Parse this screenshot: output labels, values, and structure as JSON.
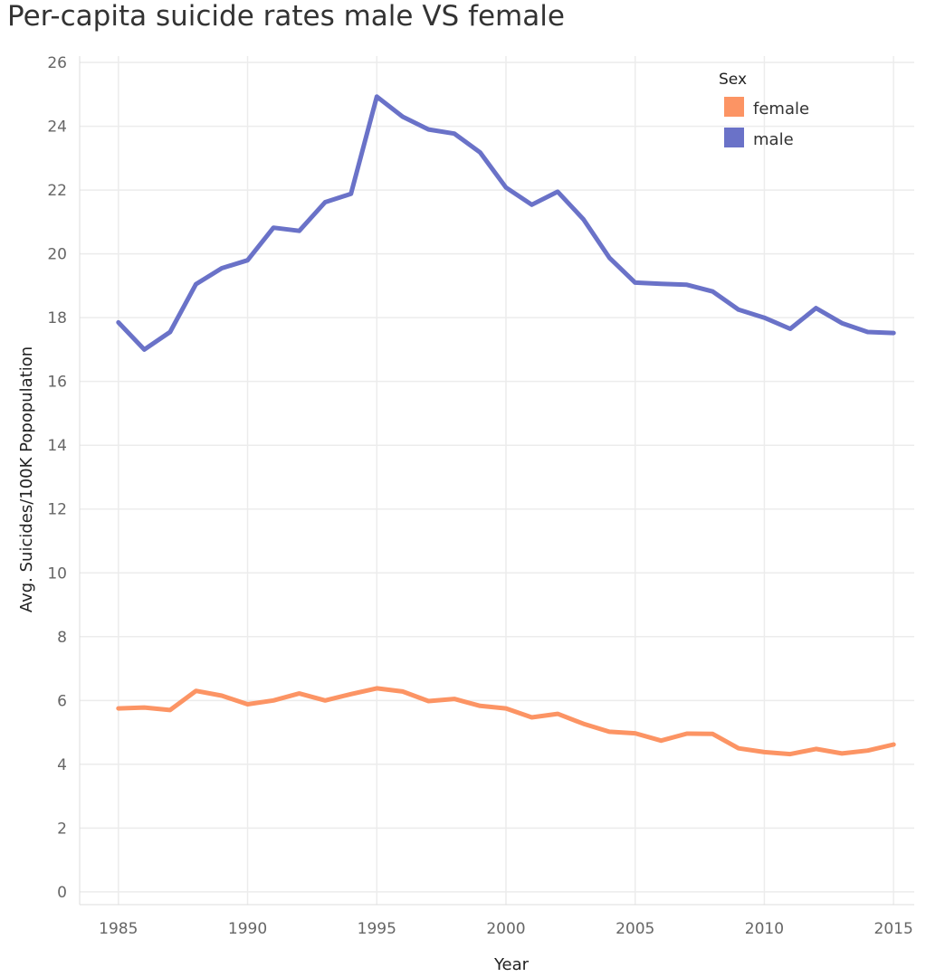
{
  "chart_data": {
    "type": "line",
    "title": "Per-capita suicide rates male VS female",
    "xlabel": "Year",
    "ylabel": "Avg. Suicides/100K Popopulation",
    "x": [
      1985,
      1986,
      1987,
      1988,
      1989,
      1990,
      1991,
      1992,
      1993,
      1994,
      1995,
      1996,
      1997,
      1998,
      1999,
      2000,
      2001,
      2002,
      2003,
      2004,
      2005,
      2006,
      2007,
      2008,
      2009,
      2010,
      2011,
      2012,
      2013,
      2014,
      2015
    ],
    "xlim": [
      1983.5,
      2015.8
    ],
    "ylim": [
      -0.4,
      26.2
    ],
    "x_ticks": [
      "1985",
      "1990",
      "1995",
      "2000",
      "2005",
      "2010",
      "2015"
    ],
    "y_ticks": [
      "0",
      "2",
      "4",
      "6",
      "8",
      "10",
      "12",
      "14",
      "16",
      "18",
      "20",
      "22",
      "24",
      "26"
    ],
    "grid": true,
    "legend": {
      "title": "Sex",
      "placement": "top-right"
    },
    "series": [
      {
        "name": "female",
        "color": "#fc9464",
        "values": [
          5.75,
          5.78,
          5.7,
          6.3,
          6.15,
          5.88,
          6.0,
          6.22,
          6.0,
          6.2,
          6.38,
          6.28,
          5.98,
          6.05,
          5.83,
          5.75,
          5.47,
          5.58,
          5.27,
          5.02,
          4.97,
          4.74,
          4.96,
          4.95,
          4.5,
          4.38,
          4.32,
          4.48,
          4.34,
          4.43,
          4.62
        ]
      },
      {
        "name": "male",
        "color": "#6a72c8",
        "values": [
          17.85,
          17.0,
          17.55,
          19.05,
          19.55,
          19.8,
          20.82,
          20.72,
          21.62,
          21.88,
          24.93,
          24.3,
          23.9,
          23.77,
          23.18,
          22.08,
          21.54,
          21.95,
          21.08,
          19.88,
          19.1,
          19.06,
          19.03,
          18.82,
          18.25,
          18.0,
          17.65,
          18.3,
          17.83,
          17.55,
          17.52
        ]
      }
    ]
  }
}
